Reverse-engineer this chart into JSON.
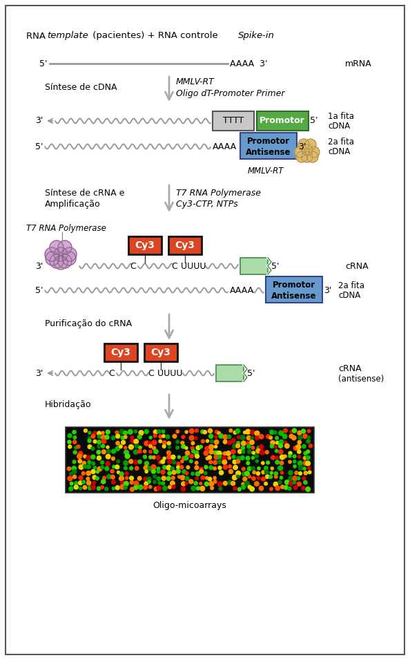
{
  "bg_color": "#ffffff",
  "border_color": "#555555",
  "fig_width": 5.94,
  "fig_height": 9.55,
  "header_text_normal1": "RNA ",
  "header_text_italic1": "template",
  "header_text_normal2": " (pacientes) + RNA controle ",
  "header_text_italic2": "Spike-in",
  "mrna_label": "mRNA",
  "step1_left": "Síntese de cDNA",
  "step1_right_line1": "MMLV-RT",
  "step1_right_line2": "Oligo dT-Promoter Primer",
  "step2_left_line1": "Síntese de cRNA e",
  "step2_left_line2": "Amplificação",
  "step2_right_line1": "T7 RNA Polymerase",
  "step2_right_line2": "Cy3-CTP, NTPs",
  "t7_label": "T7 RNA Polymerase",
  "step3_label": "Purificação do cRNA",
  "step4_label": "Hibridação",
  "oligo_label": "Oligo-micoarrays",
  "crna_label": "cRNA",
  "mmlv_label": "MMLV-RT",
  "tttt_color": "#c8c8c8",
  "promotor_color": "#55aa44",
  "promotor_antisense_color": "#6699cc",
  "cy3_color": "#dd4422",
  "wavy_color": "#999999",
  "arrow_color": "#aaaaaa",
  "green_fragment_color": "#aaddaa",
  "enzyme_color": "#cc99cc",
  "enzyme_outline": "#886688",
  "golden_color": "#ddbb77",
  "golden_outline": "#aa8833"
}
